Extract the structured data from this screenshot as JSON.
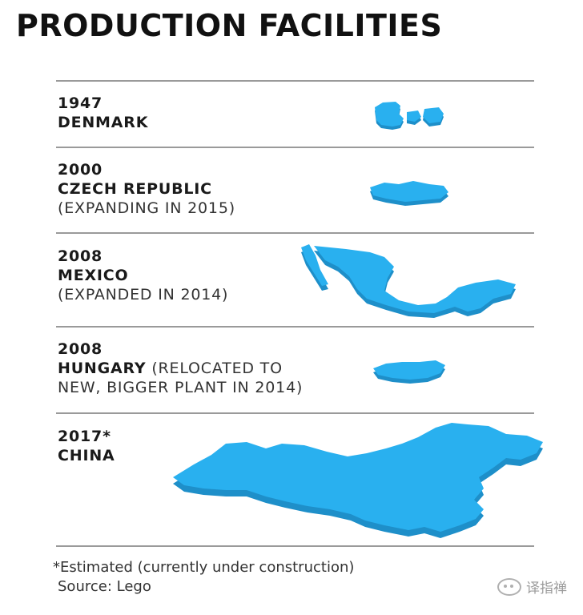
{
  "title": "PRODUCTION FACILITIES",
  "colors": {
    "map_fill": "#29b0ef",
    "map_shade": "#1e8fc9",
    "rule": "#9a9a9a"
  },
  "facilities": [
    {
      "year": "1947",
      "country": "DENMARK",
      "note": ""
    },
    {
      "year": "2000",
      "country": "CZECH REPUBLIC",
      "note": "(EXPANDING IN 2015)"
    },
    {
      "year": "2008",
      "country": "MEXICO",
      "note": "(EXPANDED IN 2014)"
    },
    {
      "year": "2008",
      "country": "HUNGARY",
      "note_inline": "(RELOCATED TO",
      "note": "NEW, BIGGER PLANT IN 2014)"
    },
    {
      "year": "2017*",
      "country": "CHINA",
      "note": ""
    }
  ],
  "footer": {
    "footnote": "*Estimated (currently under construction)",
    "source": "Source: Lego"
  },
  "watermark": {
    "text": "译指禅",
    "icon": "wechat-icon"
  }
}
